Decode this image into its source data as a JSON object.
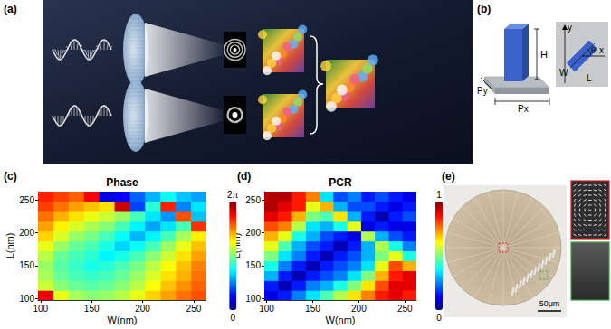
{
  "panels": {
    "a": {
      "label": "(a)"
    },
    "b": {
      "label": "(b)",
      "pillar": {
        "height": "H",
        "period_x": "Px",
        "period_y": "Py"
      },
      "top_view": {
        "axis_x": "x",
        "axis_y": "y",
        "angle": "θ",
        "width": "W",
        "length": "L"
      }
    },
    "e": {
      "label": "(e)",
      "scale_bar": "50μm"
    }
  },
  "chart_data": [
    {
      "type": "heatmap",
      "label": "(c)",
      "title": "Phase",
      "x_label": "W(nm)",
      "y_label": "L(nm)",
      "x": [
        105,
        120,
        135,
        150,
        165,
        180,
        195,
        210,
        225,
        240,
        255
      ],
      "y": [
        105,
        120,
        135,
        150,
        165,
        180,
        195,
        210,
        225,
        240,
        255
      ],
      "values": [
        [
          5.6,
          3.8,
          3.4,
          3.2,
          3.3,
          3.5,
          3.8,
          4.2,
          4.5,
          4.8,
          5.0
        ],
        [
          3.6,
          3.2,
          3.0,
          2.9,
          3.0,
          3.2,
          3.5,
          3.9,
          4.3,
          4.6,
          4.9
        ],
        [
          3.4,
          3.0,
          2.8,
          2.7,
          2.8,
          3.0,
          3.3,
          3.7,
          4.1,
          4.4,
          4.8
        ],
        [
          3.3,
          2.9,
          2.7,
          2.5,
          2.6,
          2.8,
          3.1,
          3.5,
          3.9,
          4.3,
          4.7
        ],
        [
          3.5,
          3.0,
          2.8,
          2.6,
          2.3,
          2.5,
          2.8,
          3.2,
          3.6,
          4.1,
          4.5
        ],
        [
          3.8,
          3.3,
          3.0,
          2.8,
          2.5,
          2.1,
          2.4,
          2.8,
          3.3,
          3.8,
          4.3
        ],
        [
          4.2,
          3.7,
          3.3,
          3.1,
          2.8,
          2.4,
          1.9,
          2.3,
          2.8,
          3.4,
          4.0
        ],
        [
          4.5,
          4.0,
          3.7,
          3.4,
          3.2,
          2.8,
          2.3,
          1.8,
          2.2,
          2.8,
          5.2
        ],
        [
          4.8,
          4.4,
          4.1,
          3.8,
          3.6,
          3.3,
          2.8,
          2.2,
          1.7,
          5.0,
          2.0
        ],
        [
          5.1,
          4.8,
          4.5,
          4.3,
          4.1,
          5.8,
          1.2,
          2.6,
          5.3,
          1.6,
          2.2
        ],
        [
          5.3,
          5.1,
          4.9,
          5.5,
          0.6,
          0.8,
          1.4,
          1.9,
          2.4,
          2.0,
          1.8
        ]
      ],
      "xlim": [
        97.5,
        262.5
      ],
      "ylim": [
        97.5,
        262.5
      ],
      "xticks": [
        100,
        150,
        200,
        250
      ],
      "yticks": [
        100,
        150,
        200,
        250
      ],
      "colorbar_lim": [
        0,
        6.2832
      ],
      "colorbar_ticks": [
        0,
        {
          "value": 6.2832,
          "label": "2π"
        }
      ]
    },
    {
      "type": "heatmap",
      "label": "(d)",
      "title": "PCR",
      "x_label": "W(nm)",
      "y_label": "L(nm)",
      "x": [
        105,
        120,
        135,
        150,
        165,
        180,
        195,
        210,
        225,
        240,
        255
      ],
      "y": [
        105,
        120,
        135,
        150,
        165,
        180,
        195,
        210,
        225,
        240,
        255
      ],
      "values": [
        [
          0.1,
          0.15,
          0.25,
          0.35,
          0.45,
          0.55,
          0.65,
          0.75,
          0.85,
          0.9,
          0.85
        ],
        [
          0.15,
          0.05,
          0.15,
          0.25,
          0.3,
          0.4,
          0.5,
          0.65,
          0.8,
          0.9,
          0.9
        ],
        [
          0.3,
          0.15,
          0.05,
          0.15,
          0.2,
          0.25,
          0.35,
          0.5,
          0.7,
          0.85,
          0.9
        ],
        [
          0.4,
          0.25,
          0.15,
          0.05,
          0.15,
          0.2,
          0.25,
          0.35,
          0.6,
          0.8,
          0.7
        ],
        [
          0.5,
          0.35,
          0.25,
          0.15,
          0.05,
          0.15,
          0.2,
          0.3,
          0.5,
          0.6,
          0.4
        ],
        [
          0.6,
          0.45,
          0.3,
          0.2,
          0.15,
          0.05,
          0.15,
          0.3,
          0.55,
          0.4,
          0.25
        ],
        [
          0.7,
          0.6,
          0.4,
          0.3,
          0.2,
          0.15,
          0.1,
          0.55,
          0.3,
          0.2,
          0.15
        ],
        [
          0.8,
          0.75,
          0.55,
          0.35,
          0.3,
          0.4,
          0.6,
          0.1,
          0.15,
          0.1,
          0.1
        ],
        [
          0.9,
          0.85,
          0.7,
          0.5,
          0.45,
          0.65,
          0.3,
          0.15,
          0.05,
          0.15,
          0.2
        ],
        [
          0.95,
          0.9,
          0.85,
          0.6,
          0.7,
          0.3,
          0.2,
          0.2,
          0.15,
          0.1,
          0.15
        ],
        [
          0.95,
          0.95,
          0.85,
          0.75,
          0.35,
          0.2,
          0.25,
          0.15,
          0.2,
          0.15,
          0.1
        ]
      ],
      "xlim": [
        97.5,
        262.5
      ],
      "ylim": [
        97.5,
        262.5
      ],
      "xticks": [
        100,
        150,
        200,
        250
      ],
      "yticks": [
        100,
        150,
        200,
        250
      ],
      "colorbar_lim": [
        0,
        1
      ],
      "colorbar_ticks": [
        0,
        1
      ]
    }
  ]
}
